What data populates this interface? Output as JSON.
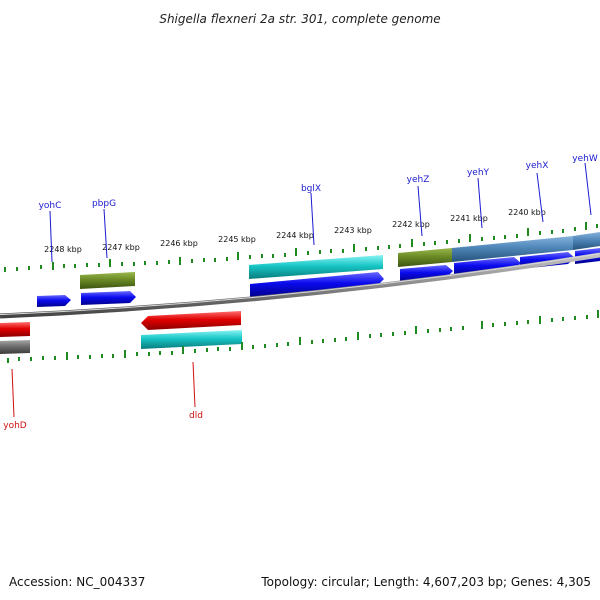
{
  "title": "Shigella flexneri 2a str. 301, complete genome",
  "accession": "Accession: NC_004337",
  "topology": "Topology: circular; Length: 4,607,203 bp; Genes: 4,305",
  "colors": {
    "forward_cds": "#0a0aee",
    "reverse_cds": "#e00000",
    "olive_feature": "#6b8a26",
    "cyan_feature": "#18c6c6",
    "steel_feature": "#4f86b8",
    "gray_feature": "#6e6e6e",
    "backbone": "#8a8a8a",
    "tick": "#1f8a1f",
    "forward_label": "#1a1ad0",
    "reverse_label": "#d01010"
  },
  "ruler": [
    "2248 kbp",
    "2247 kbp",
    "2246 kbp",
    "2245 kbp",
    "2244 kbp",
    "2243 kbp",
    "2242 kbp",
    "2241 kbp",
    "2240 kbp"
  ],
  "genes": {
    "forward": [
      "yohC",
      "pbpG",
      "bglX",
      "yehZ",
      "yehY",
      "yehX",
      "yehW"
    ],
    "reverse": [
      "dld",
      "yohD"
    ]
  }
}
